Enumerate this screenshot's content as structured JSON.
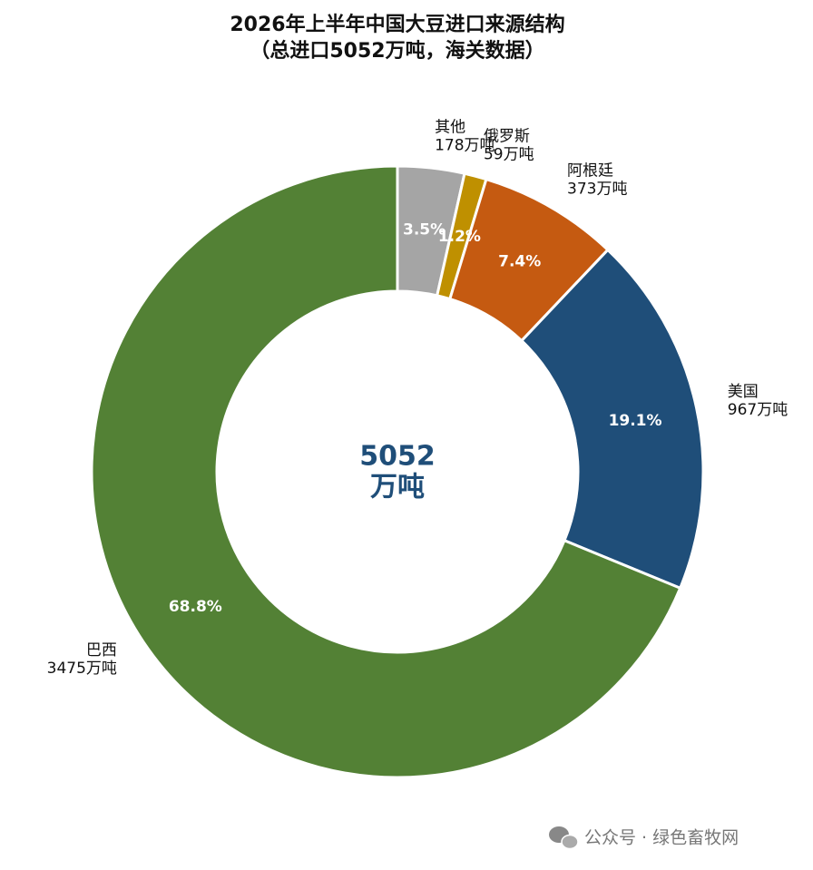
{
  "chart_data": {
    "type": "donut",
    "title": "2026年上半年中国大豆进口来源结构",
    "subtitle": "（总进口5052万吨，海关数据）",
    "categories": [
      "其他",
      "俄罗斯",
      "阿根廷",
      "美国",
      "巴西"
    ],
    "values": [
      178,
      59,
      373,
      967,
      3475
    ],
    "value_labels": [
      "178万吨",
      "59万吨",
      "373万吨",
      "967万吨",
      "3475万吨"
    ],
    "percentages": [
      3.5,
      1.2,
      7.4,
      19.1,
      68.8
    ],
    "percentage_labels": [
      "3.5%",
      "1.2%",
      "7.4%",
      "19.1%",
      "68.8%"
    ],
    "colors": [
      "#a5a5a5",
      "#bf9000",
      "#c55a11",
      "#1f4e79",
      "#538135"
    ],
    "total": 5052,
    "total_unit": "万吨"
  },
  "watermark": "公众号 · 绿色畜牧网"
}
